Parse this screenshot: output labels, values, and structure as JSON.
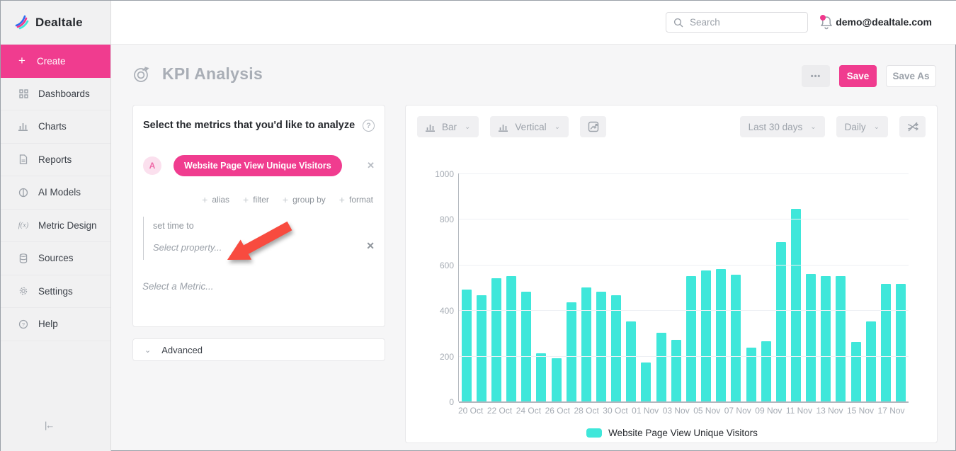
{
  "app": {
    "brand": "Dealtale"
  },
  "topbar": {
    "search_placeholder": "Search",
    "user_email": "demo@dealtale.com"
  },
  "sidebar": {
    "items": [
      {
        "label": "Create",
        "icon": "plus-icon",
        "active": true
      },
      {
        "label": "Dashboards",
        "icon": "grid-icon",
        "active": false
      },
      {
        "label": "Charts",
        "icon": "bar-chart-icon",
        "active": false
      },
      {
        "label": "Reports",
        "icon": "document-icon",
        "active": false
      },
      {
        "label": "AI Models",
        "icon": "ai-model-icon",
        "active": false
      },
      {
        "label": "Metric Design",
        "icon": "function-icon",
        "active": false
      },
      {
        "label": "Sources",
        "icon": "database-icon",
        "active": false
      },
      {
        "label": "Settings",
        "icon": "gear-icon",
        "active": false
      },
      {
        "label": "Help",
        "icon": "question-icon",
        "active": false
      }
    ]
  },
  "page": {
    "title": "KPI Analysis",
    "more_label": "•••",
    "save_label": "Save",
    "save_as_label": "Save As"
  },
  "metrics_panel": {
    "title": "Select the metrics that you'd like to analyze",
    "help_glyph": "?",
    "metric_letter": "A",
    "metric_chip": "Website Page View Unique Visitors",
    "remove_glyph": "✕",
    "actions": [
      "alias",
      "filter",
      "group by",
      "format"
    ],
    "plus_glyph": "+",
    "set_time_to_label": "set time to",
    "select_property_placeholder": "Select property...",
    "select_metric_placeholder": "Select a Metric...",
    "advanced_label": "Advanced",
    "chevron_glyph": "⌄"
  },
  "chart_toolbar": {
    "chart_type": "Bar",
    "orientation": "Vertical",
    "date_range": "Last 30 days",
    "granularity": "Daily",
    "chevron_glyph": "⌄"
  },
  "colors": {
    "accent_pink": "#f03c8f",
    "bar_teal": "#3fe7da",
    "annotation_red": "#f84b3f"
  },
  "chart_data": {
    "type": "bar",
    "title": "",
    "xlabel": "",
    "ylabel": "",
    "ylim": [
      0,
      1000
    ],
    "yticks": [
      0,
      200,
      400,
      600,
      800,
      1000
    ],
    "grid": true,
    "legend_position": "bottom",
    "series_name": "Website Page View Unique Visitors",
    "x": [
      "20 Oct",
      "21 Oct",
      "22 Oct",
      "23 Oct",
      "24 Oct",
      "25 Oct",
      "26 Oct",
      "27 Oct",
      "28 Oct",
      "29 Oct",
      "30 Oct",
      "31 Oct",
      "01 Nov",
      "02 Nov",
      "03 Nov",
      "04 Nov",
      "05 Nov",
      "06 Nov",
      "07 Nov",
      "08 Nov",
      "09 Nov",
      "10 Nov",
      "11 Nov",
      "12 Nov",
      "13 Nov",
      "14 Nov",
      "15 Nov",
      "16 Nov",
      "17 Nov",
      "18 Nov"
    ],
    "x_tick_step": 2,
    "values": [
      490,
      465,
      540,
      550,
      480,
      210,
      190,
      435,
      500,
      480,
      465,
      350,
      170,
      300,
      270,
      550,
      575,
      580,
      555,
      235,
      265,
      700,
      845,
      560,
      550,
      550,
      260,
      350,
      515,
      515
    ]
  }
}
